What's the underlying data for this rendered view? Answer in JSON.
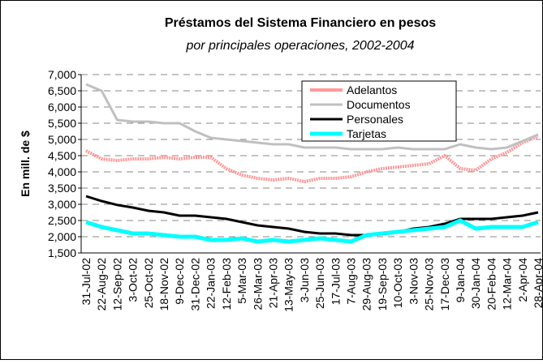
{
  "chart_data": {
    "type": "line",
    "title": "Préstamos del Sistema Financiero en pesos",
    "subtitle": "por principales operaciones, 2002-2004",
    "y_label": "En mill. de $",
    "categories": [
      "31-Jul-02",
      "22-Aug-02",
      "12-Sep-02",
      "3-Oct-02",
      "25-Oct-02",
      "18-Nov-02",
      "9-Dec-02",
      "31-Dec-02",
      "22-Jan-03",
      "12-Feb-03",
      "5-Mar-03",
      "26-Mar-03",
      "21-Apr-03",
      "13-May-03",
      "3-Jun-03",
      "25-Jun-03",
      "17-Jul-03",
      "7-Aug-03",
      "29-Aug-03",
      "19-Sep-03",
      "10-Oct-03",
      "3-Nov-03",
      "25-Nov-03",
      "17-Dec-03",
      "9-Jan-04",
      "30-Jan-04",
      "20-Feb-04",
      "12-Mar-04",
      "2-Apr-04",
      "28-Apr-04"
    ],
    "series": [
      {
        "name": "Adelantos",
        "color": "#ff9999",
        "values": [
          4650,
          4400,
          4350,
          4400,
          4400,
          4450,
          4400,
          4450,
          4450,
          4100,
          3900,
          3800,
          3750,
          3800,
          3700,
          3800,
          3800,
          3850,
          4000,
          4100,
          4150,
          4200,
          4250,
          4500,
          4100,
          4050,
          4400,
          4600,
          4900,
          5100
        ]
      },
      {
        "name": "Documentos",
        "color": "#c0c0c0",
        "values": [
          6700,
          6500,
          5600,
          5550,
          5550,
          5500,
          5500,
          5250,
          5050,
          5000,
          4950,
          4900,
          4850,
          4850,
          4750,
          4750,
          4750,
          4700,
          4700,
          4700,
          4750,
          4700,
          4700,
          4700,
          4850,
          4750,
          4700,
          4750,
          4950,
          5150
        ]
      },
      {
        "name": "Personales",
        "color": "#000000",
        "values": [
          3250,
          3100,
          2980,
          2900,
          2800,
          2750,
          2650,
          2650,
          2600,
          2550,
          2450,
          2350,
          2300,
          2250,
          2150,
          2100,
          2100,
          2050,
          2050,
          2100,
          2150,
          2250,
          2300,
          2400,
          2550,
          2550,
          2550,
          2600,
          2650,
          2750
        ]
      },
      {
        "name": "Tarjetas",
        "color": "#00ffff",
        "values": [
          2450,
          2300,
          2200,
          2100,
          2100,
          2050,
          2000,
          2000,
          1900,
          1900,
          1950,
          1850,
          1900,
          1850,
          1900,
          1950,
          1900,
          1850,
          2050,
          2100,
          2150,
          2200,
          2250,
          2300,
          2500,
          2250,
          2300,
          2300,
          2300,
          2450
        ]
      }
    ],
    "ylim": [
      1500,
      7000
    ],
    "yticks": [
      {
        "value": 1500,
        "label": "1,500"
      },
      {
        "value": 2000,
        "label": "2,000"
      },
      {
        "value": 2500,
        "label": "2,500"
      },
      {
        "value": 3000,
        "label": "3,000"
      },
      {
        "value": 3500,
        "label": "3,500"
      },
      {
        "value": 4000,
        "label": "4,000"
      },
      {
        "value": 4500,
        "label": "4,500"
      },
      {
        "value": 5000,
        "label": "5,000"
      },
      {
        "value": 5500,
        "label": "5,500"
      },
      {
        "value": 6000,
        "label": "6,000"
      },
      {
        "value": 6500,
        "label": "6,500"
      },
      {
        "value": 7000,
        "label": "7,000"
      }
    ],
    "grid": true,
    "legend": "top-right"
  }
}
